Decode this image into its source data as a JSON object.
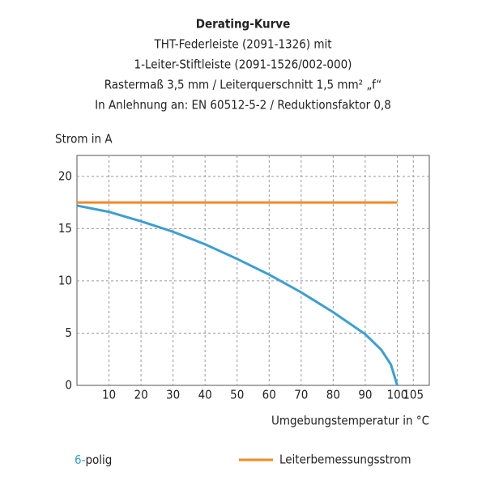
{
  "chart_data": {
    "type": "line",
    "title": "Derating-Kurve",
    "subtitle": [
      "THT-Federleiste (2091-1326) mit",
      "1-Leiter-Stiftleiste (2091-1526/002-000)",
      "Rastermaß 3,5 mm / Leiterquerschnitt 1,5 mm² „f“",
      "In Anlehnung an: EN 60512-5-2 / Reduktionsfaktor 0,8"
    ],
    "y_label": "Strom in A",
    "x_label": "Umgebungstemperatur in °C",
    "xlim": [
      0,
      110
    ],
    "ylim": [
      0,
      22
    ],
    "xticks": [
      10,
      20,
      30,
      40,
      50,
      60,
      70,
      80,
      90,
      100,
      105
    ],
    "yticks": [
      0,
      5,
      10,
      15,
      20
    ],
    "grid": true,
    "series": [
      {
        "name": "6-",
        "name_suffix": "polig",
        "color": "#3a9fd1",
        "x": [
          0,
          10,
          20,
          30,
          40,
          50,
          60,
          70,
          80,
          90,
          95,
          98,
          100
        ],
        "values": [
          17.2,
          16.6,
          15.7,
          14.7,
          13.5,
          12.1,
          10.6,
          8.9,
          7.0,
          4.9,
          3.4,
          2.0,
          0
        ]
      },
      {
        "name": "Leiterbemessungsstrom",
        "color": "#f08a24",
        "x": [
          0,
          100
        ],
        "values": [
          17.5,
          17.5
        ]
      }
    ]
  }
}
